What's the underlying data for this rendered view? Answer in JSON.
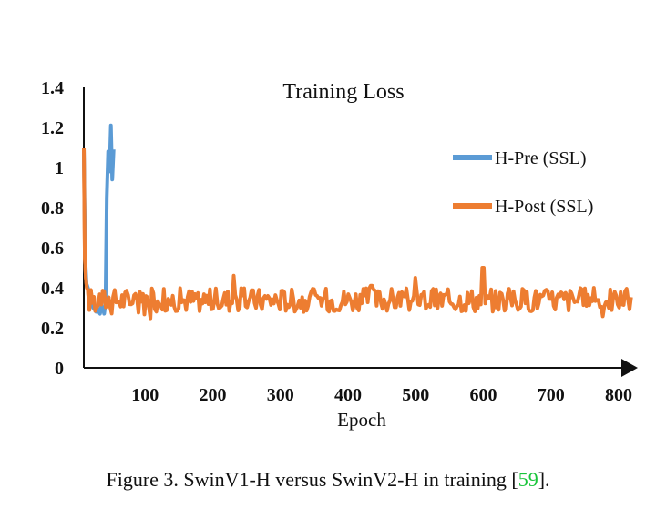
{
  "chart_data": {
    "type": "line",
    "title": "Training Loss",
    "xlabel": "Epoch",
    "ylabel": "",
    "xlim": [
      0,
      800
    ],
    "ylim": [
      0,
      1.4
    ],
    "x_ticks": [
      "100",
      "200",
      "300",
      "400",
      "500",
      "600",
      "700",
      "800"
    ],
    "y_ticks": [
      "0",
      "0.2",
      "0.4",
      "0.6",
      "0.8",
      "1",
      "1.2",
      "1.4"
    ],
    "grid": false,
    "legend_position": "right",
    "series": [
      {
        "name": "H-Pre (SSL)",
        "color": "#5b9bd5",
        "x": [
          0,
          2,
          4,
          6,
          8,
          10,
          12,
          14,
          16,
          18,
          20,
          22,
          24,
          26,
          28,
          30,
          32,
          34,
          36,
          38,
          40,
          42,
          44
        ],
        "y": [
          1.1,
          0.55,
          0.42,
          0.4,
          0.37,
          0.34,
          0.32,
          0.3,
          0.29,
          0.28,
          0.3,
          0.28,
          0.27,
          0.31,
          0.3,
          0.27,
          0.32,
          0.85,
          1.08,
          0.98,
          1.21,
          0.94,
          1.09
        ]
      },
      {
        "name": "H-Post (SSL)",
        "color": "#ed7d31",
        "x_range": [
          0,
          810
        ],
        "start_values": [
          1.1,
          0.55,
          0.45,
          0.4
        ],
        "mean": 0.34,
        "spread": 0.06,
        "spikes": [
          {
            "x": 222,
            "y": 0.46
          },
          {
            "x": 590,
            "y": 0.5
          },
          {
            "x": 490,
            "y": 0.45
          },
          {
            "x": 425,
            "y": 0.41
          }
        ]
      }
    ]
  },
  "caption": {
    "text": "Figure 3. SwinV1-H versus SwinV2-H in training [",
    "ref": "59",
    "end": "]."
  }
}
